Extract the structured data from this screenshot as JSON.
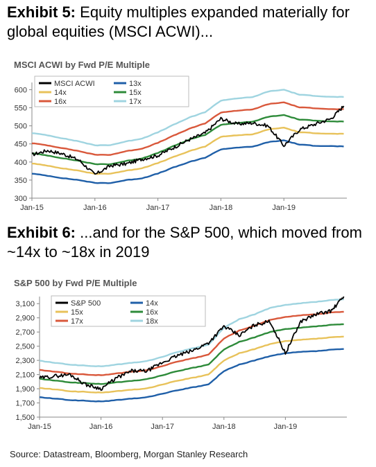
{
  "exhibit5": {
    "label": "Exhibit 5:",
    "text": "Equity multiples expanded materially for global equities (MSCI ACWI)..."
  },
  "exhibit6": {
    "label": "Exhibit 6:",
    "text": "...and for the S&P 500, which moved from ~14x to ~18x in 2019"
  },
  "source": "Source: Datastream, Bloomberg, Morgan Stanley Research",
  "chart_data": [
    {
      "type": "line",
      "title": "MSCI ACWI by Fwd P/E Multiple",
      "xlabel": "",
      "ylabel": "",
      "x_ticks": [
        "Jan-15",
        "Jan-16",
        "Jan-17",
        "Jan-18",
        "Jan-19"
      ],
      "y_ticks": [
        300,
        350,
        400,
        450,
        500,
        550,
        600
      ],
      "ylim": [
        300,
        620
      ],
      "legend_position": "top-left",
      "x": [
        2015.0,
        2015.25,
        2015.5,
        2015.75,
        2016.0,
        2016.25,
        2016.5,
        2016.75,
        2017.0,
        2017.25,
        2017.5,
        2017.75,
        2018.0,
        2018.25,
        2018.5,
        2018.75,
        2019.0,
        2019.25,
        2019.5,
        2019.75,
        2019.95
      ],
      "series": [
        {
          "name": "MSCI ACWI",
          "color": "#000000",
          "values": [
            420,
            432,
            422,
            405,
            365,
            390,
            395,
            408,
            418,
            440,
            462,
            480,
            520,
            505,
            508,
            500,
            445,
            490,
            505,
            520,
            555
          ]
        },
        {
          "name": "13x",
          "color": "#1f5fa8",
          "values": [
            368,
            362,
            355,
            350,
            342,
            342,
            350,
            355,
            368,
            385,
            400,
            412,
            435,
            440,
            442,
            455,
            460,
            448,
            445,
            444,
            443
          ]
        },
        {
          "name": "14x",
          "color": "#e8c25a",
          "values": [
            396,
            390,
            382,
            376,
            367,
            368,
            376,
            383,
            397,
            414,
            430,
            443,
            470,
            474,
            476,
            490,
            495,
            482,
            480,
            478,
            478
          ]
        },
        {
          "name": "15x",
          "color": "#2e8b3a",
          "values": [
            424,
            418,
            410,
            403,
            394,
            394,
            403,
            410,
            425,
            444,
            462,
            475,
            503,
            508,
            511,
            525,
            530,
            517,
            515,
            512,
            512
          ]
        },
        {
          "name": "16x",
          "color": "#d9583b",
          "values": [
            452,
            446,
            438,
            430,
            420,
            420,
            430,
            437,
            453,
            473,
            492,
            507,
            537,
            542,
            545,
            560,
            565,
            551,
            549,
            546,
            546
          ]
        },
        {
          "name": "17x",
          "color": "#9fd4e0",
          "values": [
            480,
            474,
            465,
            457,
            446,
            447,
            457,
            465,
            482,
            503,
            523,
            538,
            570,
            576,
            579,
            595,
            600,
            586,
            583,
            580,
            580
          ]
        }
      ]
    },
    {
      "type": "line",
      "title": "S&P 500 by Fwd P/E Multiple",
      "xlabel": "",
      "ylabel": "",
      "x_ticks": [
        "Jan-15",
        "Jan-16",
        "Jan-17",
        "Jan-18",
        "Jan-19"
      ],
      "y_ticks": [
        "1,500",
        "1,700",
        "1,900",
        "2,100",
        "2,300",
        "2,500",
        "2,700",
        "2,900",
        "3,100"
      ],
      "ylim": [
        1500,
        3200
      ],
      "legend_position": "top-left",
      "x": [
        2015.0,
        2015.25,
        2015.5,
        2015.75,
        2016.0,
        2016.25,
        2016.5,
        2016.75,
        2017.0,
        2017.25,
        2017.5,
        2017.75,
        2018.0,
        2018.25,
        2018.5,
        2018.75,
        2019.0,
        2019.25,
        2019.5,
        2019.75,
        2019.95
      ],
      "series": [
        {
          "name": "S&P 500",
          "color": "#000000",
          "values": [
            2050,
            2080,
            2100,
            1960,
            1900,
            2050,
            2150,
            2150,
            2270,
            2370,
            2440,
            2550,
            2780,
            2650,
            2800,
            2850,
            2400,
            2850,
            2950,
            3000,
            3200
          ]
        },
        {
          "name": "14x",
          "color": "#1f5fa8",
          "values": [
            1780,
            1760,
            1740,
            1730,
            1720,
            1740,
            1760,
            1780,
            1830,
            1880,
            1920,
            1960,
            2150,
            2240,
            2300,
            2360,
            2400,
            2420,
            2430,
            2450,
            2460
          ]
        },
        {
          "name": "15x",
          "color": "#e8c25a",
          "values": [
            1910,
            1890,
            1865,
            1855,
            1845,
            1865,
            1885,
            1905,
            1960,
            2015,
            2055,
            2100,
            2300,
            2400,
            2460,
            2530,
            2570,
            2590,
            2605,
            2625,
            2635
          ]
        },
        {
          "name": "16x",
          "color": "#2e8b3a",
          "values": [
            2040,
            2015,
            1990,
            1980,
            1965,
            1990,
            2010,
            2035,
            2090,
            2150,
            2195,
            2240,
            2455,
            2560,
            2625,
            2700,
            2740,
            2760,
            2780,
            2800,
            2810
          ]
        },
        {
          "name": "17x",
          "color": "#d9583b",
          "values": [
            2165,
            2140,
            2115,
            2100,
            2090,
            2115,
            2140,
            2160,
            2220,
            2285,
            2330,
            2380,
            2610,
            2720,
            2790,
            2870,
            2910,
            2935,
            2950,
            2975,
            2985
          ]
        },
        {
          "name": "18x",
          "color": "#9fd4e0",
          "values": [
            2295,
            2265,
            2240,
            2225,
            2215,
            2240,
            2265,
            2290,
            2350,
            2420,
            2470,
            2520,
            2760,
            2880,
            2950,
            3040,
            3080,
            3105,
            3125,
            3150,
            3160
          ]
        }
      ]
    }
  ]
}
